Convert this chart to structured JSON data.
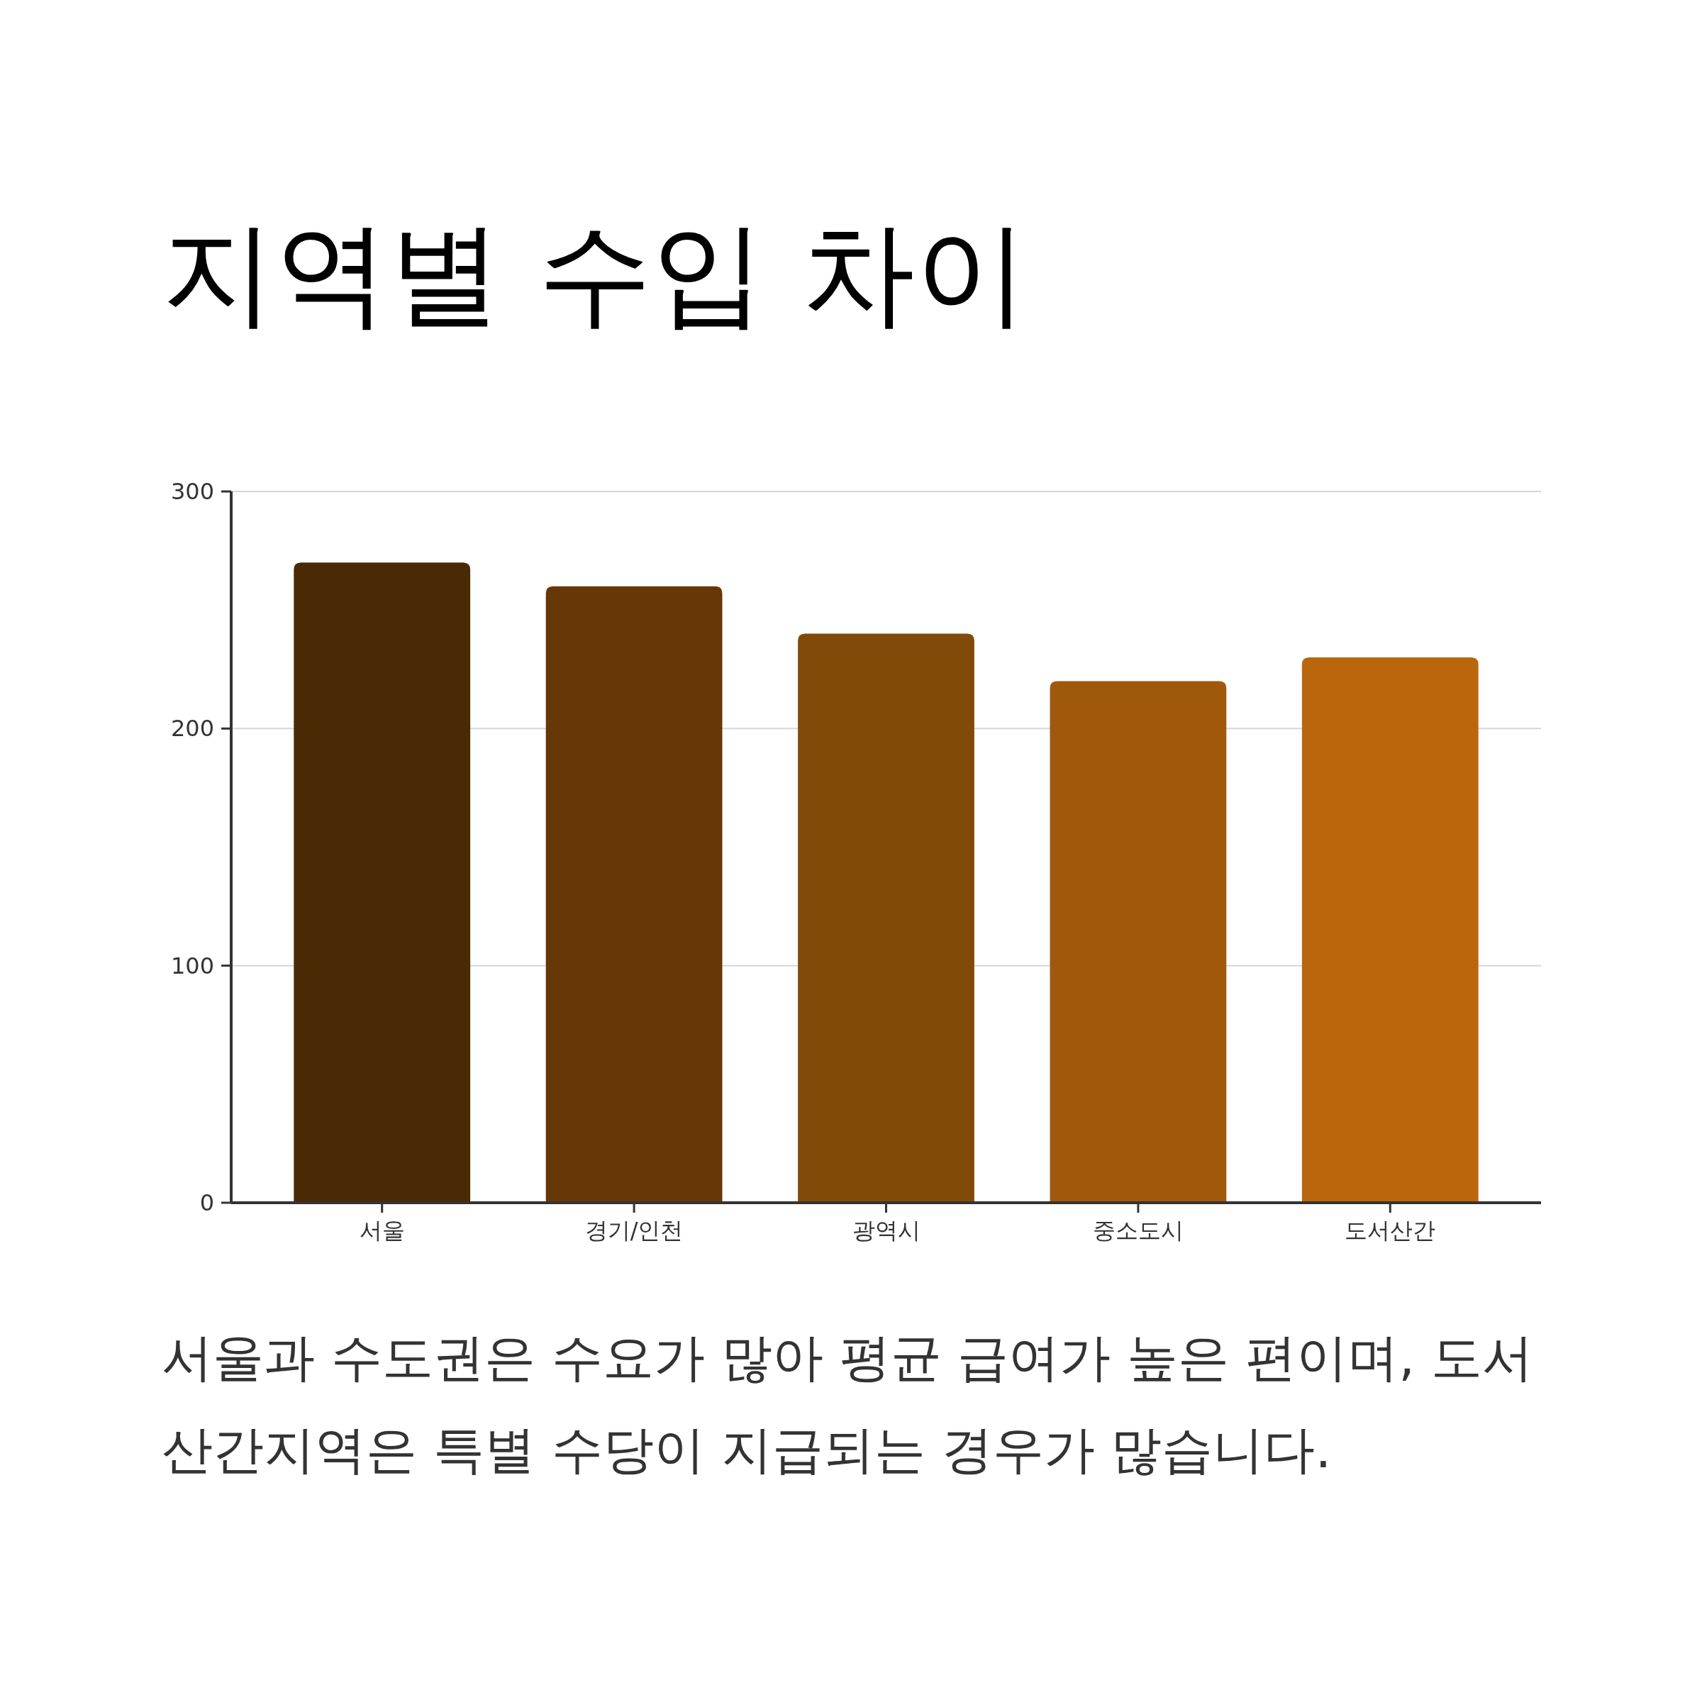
{
  "chart_data": {
    "type": "bar",
    "title": "지역별 수입 차이",
    "categories": [
      "서울",
      "경기/인천",
      "광역시",
      "중소도시",
      "도서산간"
    ],
    "values": [
      270,
      260,
      240,
      220,
      230
    ],
    "colors": [
      "#4a2a04",
      "#663807",
      "#824a08",
      "#a0590b",
      "#b9660d"
    ],
    "ylim": [
      0,
      300
    ],
    "yticks": [
      0,
      100,
      200,
      300
    ],
    "grid": "y",
    "annotations": [
      "서울과 수도권은 수요가 많아 평균 급여가 높은 편이며, 도서산간지역은 특별 수당이 지급되는 경우가 많습니다."
    ]
  }
}
